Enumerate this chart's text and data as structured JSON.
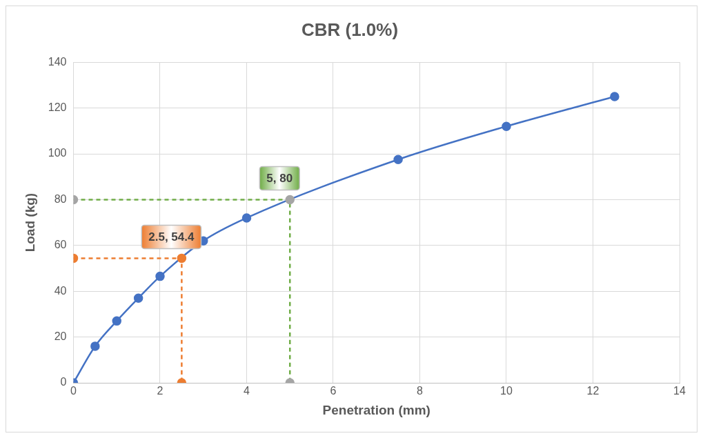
{
  "chart_data": {
    "type": "line",
    "title": "CBR (1.0%)",
    "xlabel": "Penetration (mm)",
    "ylabel": "Load (kg)",
    "xlim": [
      0,
      14
    ],
    "xticks": [
      0,
      2,
      4,
      6,
      8,
      10,
      12,
      14
    ],
    "ylim": [
      0,
      140
    ],
    "yticks": [
      0,
      20,
      40,
      60,
      80,
      100,
      120,
      140
    ],
    "grid": true,
    "legend": false,
    "marker": "circle",
    "series": [
      {
        "color": "#4472c4",
        "line_style": "solid",
        "x": [
          0,
          0.5,
          1,
          1.5,
          2,
          3,
          4,
          5,
          7.5,
          10,
          12.5
        ],
        "values": [
          0,
          16,
          27,
          37,
          46.5,
          62,
          72,
          null,
          97.5,
          112,
          125
        ]
      },
      {
        "color": "#ed7d31",
        "line_style": "dashed",
        "x": [
          0,
          2.5,
          2.5
        ],
        "values": [
          54.4,
          54.4,
          0
        ]
      },
      {
        "color": "#70ad47",
        "colors": [
          "#a5a5a5",
          "#a5a5a5",
          "#a5a5a5"
        ],
        "line_style": "dashed",
        "x": [
          0,
          5,
          5
        ],
        "values": [
          80,
          80,
          0
        ]
      }
    ],
    "annotations": [
      {
        "text": "2.5, 54.4",
        "x": 2.5,
        "y": 54.4
      },
      {
        "text": "5, 80",
        "x": 5,
        "y": 80
      }
    ]
  }
}
